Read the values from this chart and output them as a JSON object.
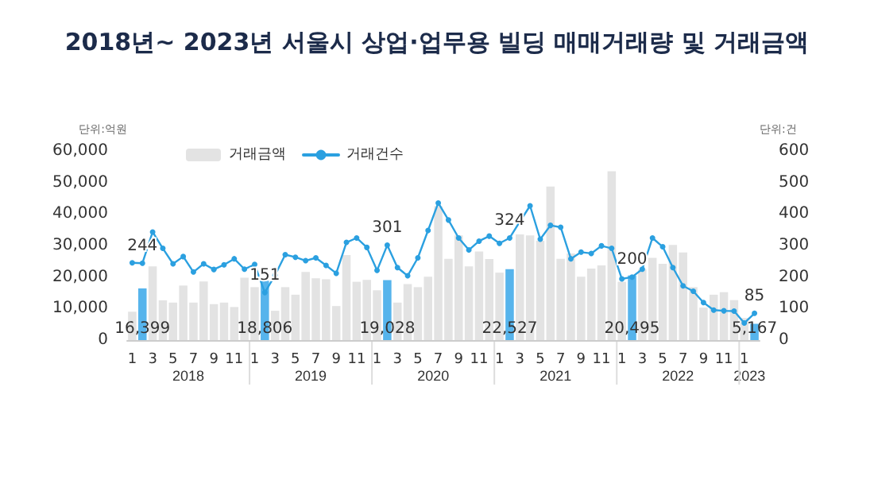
{
  "chart_data": {
    "type": "bar",
    "title": "2018년~ 2023년 서울시 상업·업무용 빌딩 매매거래량 및 거래금액",
    "ylabel": "단위:억원",
    "y2label": "단위:건",
    "categories": [
      "1",
      null,
      "3",
      null,
      "5",
      null,
      "7",
      null,
      "9",
      null,
      "11",
      null,
      "1",
      null,
      "3",
      null,
      "5",
      null,
      "7",
      null,
      "9",
      null,
      "11",
      null,
      "1",
      null,
      "3",
      null,
      "5",
      null,
      "7",
      null,
      "9",
      null,
      "11",
      null,
      "1",
      null,
      "3",
      null,
      "5",
      null,
      "7",
      null,
      "9",
      null,
      "11",
      null,
      "1",
      null,
      "3",
      null,
      "5",
      null,
      "7",
      null,
      "9",
      null,
      "11",
      null,
      "1",
      null
    ],
    "annotations": [
      "2018",
      "2019",
      "2020",
      "2021",
      "2022",
      "2023"
    ],
    "series": [
      {
        "name": "거래금액",
        "color": "#e3e3e3",
        "values": [
          9000,
          16399,
          23400,
          12600,
          11900,
          17300,
          11900,
          18600,
          11400,
          11900,
          10500,
          19800,
          16800,
          18806,
          9300,
          16800,
          14400,
          21600,
          19600,
          19300,
          10800,
          27000,
          18500,
          19100,
          15800,
          19028,
          11900,
          17800,
          16800,
          20100,
          42500,
          25800,
          33200,
          23400,
          28100,
          25700,
          21400,
          22527,
          33500,
          33200,
          31500,
          48700,
          25800,
          27500,
          20100,
          22700,
          23700,
          53600,
          18500,
          20495,
          22500,
          26100,
          24200,
          30200,
          27800,
          16800,
          10300,
          14400,
          15200,
          12700,
          7000,
          5167
        ],
        "colors": [
          "#e3e3e3",
          "#56b4ec",
          "#e3e3e3",
          "#e3e3e3",
          "#e3e3e3",
          "#e3e3e3",
          "#e3e3e3",
          "#e3e3e3",
          "#e3e3e3",
          "#e3e3e3",
          "#e3e3e3",
          "#e3e3e3",
          "#e3e3e3",
          "#56b4ec",
          "#e3e3e3",
          "#e3e3e3",
          "#e3e3e3",
          "#e3e3e3",
          "#e3e3e3",
          "#e3e3e3",
          "#e3e3e3",
          "#e3e3e3",
          "#e3e3e3",
          "#e3e3e3",
          "#e3e3e3",
          "#56b4ec",
          "#e3e3e3",
          "#e3e3e3",
          "#e3e3e3",
          "#e3e3e3",
          "#e3e3e3",
          "#e3e3e3",
          "#e3e3e3",
          "#e3e3e3",
          "#e3e3e3",
          "#e3e3e3",
          "#e3e3e3",
          "#56b4ec",
          "#e3e3e3",
          "#e3e3e3",
          "#e3e3e3",
          "#e3e3e3",
          "#e3e3e3",
          "#e3e3e3",
          "#e3e3e3",
          "#e3e3e3",
          "#e3e3e3",
          "#e3e3e3",
          "#e3e3e3",
          "#56b4ec",
          "#e3e3e3",
          "#e3e3e3",
          "#e3e3e3",
          "#e3e3e3",
          "#e3e3e3",
          "#e3e3e3",
          "#e3e3e3",
          "#e3e3e3",
          "#e3e3e3",
          "#e3e3e3",
          "#e3e3e3",
          "#56b4ec"
        ],
        "value_labels": [
          null,
          "16,399",
          null,
          null,
          null,
          null,
          null,
          null,
          null,
          null,
          null,
          null,
          null,
          "18,806",
          null,
          null,
          null,
          null,
          null,
          null,
          null,
          null,
          null,
          null,
          null,
          "19,028",
          null,
          null,
          null,
          null,
          null,
          null,
          null,
          null,
          null,
          null,
          null,
          "22,527",
          null,
          null,
          null,
          null,
          null,
          null,
          null,
          null,
          null,
          null,
          null,
          "20,495",
          null,
          null,
          null,
          null,
          null,
          null,
          null,
          null,
          null,
          null,
          null,
          "5,167"
        ]
      },
      {
        "name": "거래건수",
        "type": "line",
        "axis": "y2",
        "color": "#2ba0e0",
        "marker": "circle",
        "line_style": "solid",
        "values": [
          245,
          244,
          343,
          291,
          242,
          265,
          216,
          242,
          224,
          239,
          258,
          225,
          240,
          151,
          206,
          271,
          263,
          252,
          261,
          237,
          212,
          310,
          324,
          294,
          221,
          301,
          230,
          204,
          261,
          348,
          435,
          381,
          324,
          286,
          314,
          330,
          307,
          324,
          376,
          426,
          320,
          364,
          358,
          258,
          279,
          275,
          299,
          291,
          194,
          200,
          225,
          324,
          296,
          230,
          172,
          155,
          119,
          95,
          93,
          92,
          54,
          85
        ],
        "value_labels": [
          null,
          "244",
          null,
          null,
          null,
          null,
          null,
          null,
          null,
          null,
          null,
          null,
          null,
          "151",
          null,
          null,
          null,
          null,
          null,
          null,
          null,
          null,
          null,
          null,
          null,
          "301",
          null,
          null,
          null,
          null,
          null,
          null,
          null,
          null,
          null,
          null,
          null,
          "324",
          null,
          null,
          null,
          null,
          null,
          null,
          null,
          null,
          null,
          null,
          null,
          "200",
          null,
          null,
          null,
          null,
          null,
          null,
          null,
          null,
          null,
          null,
          null,
          "85"
        ]
      }
    ],
    "ylim": [
      0,
      60000
    ],
    "yticks": [
      0,
      {
        "value": 10000,
        "label": "10,000"
      },
      {
        "value": 20000,
        "label": "20,000"
      },
      {
        "value": 30000,
        "label": "30,000"
      },
      {
        "value": 40000,
        "label": "40,000"
      },
      {
        "value": 50000,
        "label": "50,000"
      },
      {
        "value": 60000,
        "label": "60,000"
      }
    ],
    "y2lim": [
      0,
      600
    ],
    "y2ticks": [
      0,
      100,
      200,
      300,
      400,
      500,
      600
    ],
    "grid": false,
    "legend": "top left"
  }
}
